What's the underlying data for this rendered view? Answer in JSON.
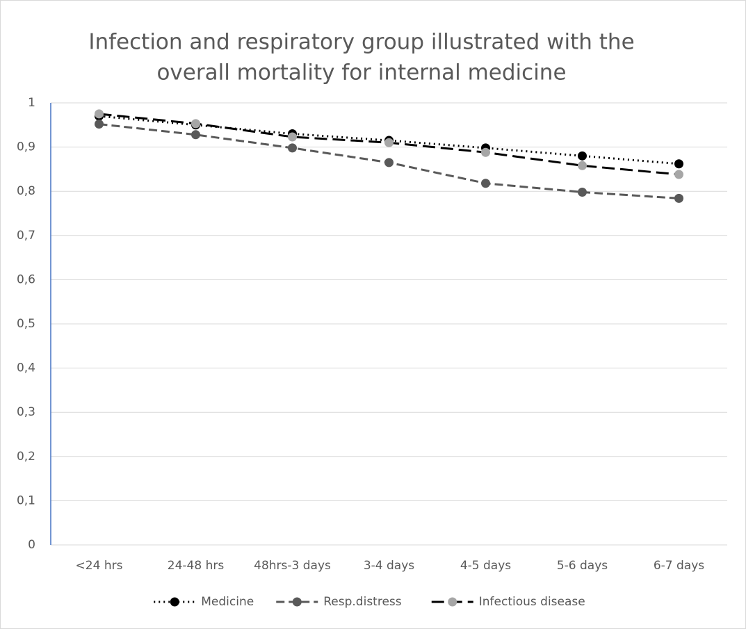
{
  "chart_data": {
    "type": "line",
    "title": [
      "Infection and respiratory group illustrated with the",
      "overall mortality for internal medicine"
    ],
    "categories": [
      "<24 hrs",
      "24-48 hrs",
      "48hrs-3 days",
      "3-4 days",
      "4-5 days",
      "5-6 days",
      "6-7 days"
    ],
    "series": [
      {
        "name": "Medicine",
        "color": "#000000",
        "marker_color": "#000000",
        "dash": "2 5",
        "values": [
          0.97,
          0.95,
          0.93,
          0.915,
          0.898,
          0.88,
          0.862
        ]
      },
      {
        "name": "Resp.distress",
        "color": "#595959",
        "marker_color": "#595959",
        "dash": "12 6",
        "values": [
          0.952,
          0.928,
          0.898,
          0.865,
          0.818,
          0.798,
          0.784
        ]
      },
      {
        "name": "Infectious disease",
        "color": "#000000",
        "marker_color": "#a6a6a6",
        "dash": "18 8",
        "values": [
          0.975,
          0.953,
          0.923,
          0.91,
          0.888,
          0.858,
          0.838
        ]
      }
    ],
    "ylim": [
      0,
      1
    ],
    "yticks": [
      0,
      {
        "value": 0.1,
        "label": "0,1"
      },
      {
        "value": 0.2,
        "label": "0,2"
      },
      {
        "value": 0.3,
        "label": "0,3"
      },
      {
        "value": 0.4,
        "label": "0,4"
      },
      {
        "value": 0.5,
        "label": "0,5"
      },
      {
        "value": 0.6,
        "label": "0,6"
      },
      {
        "value": 0.7,
        "label": "0,7"
      },
      {
        "value": 0.8,
        "label": "0,8"
      },
      {
        "value": 0.9,
        "label": "0,9"
      },
      1
    ],
    "grid": true,
    "legend": "bottom"
  }
}
